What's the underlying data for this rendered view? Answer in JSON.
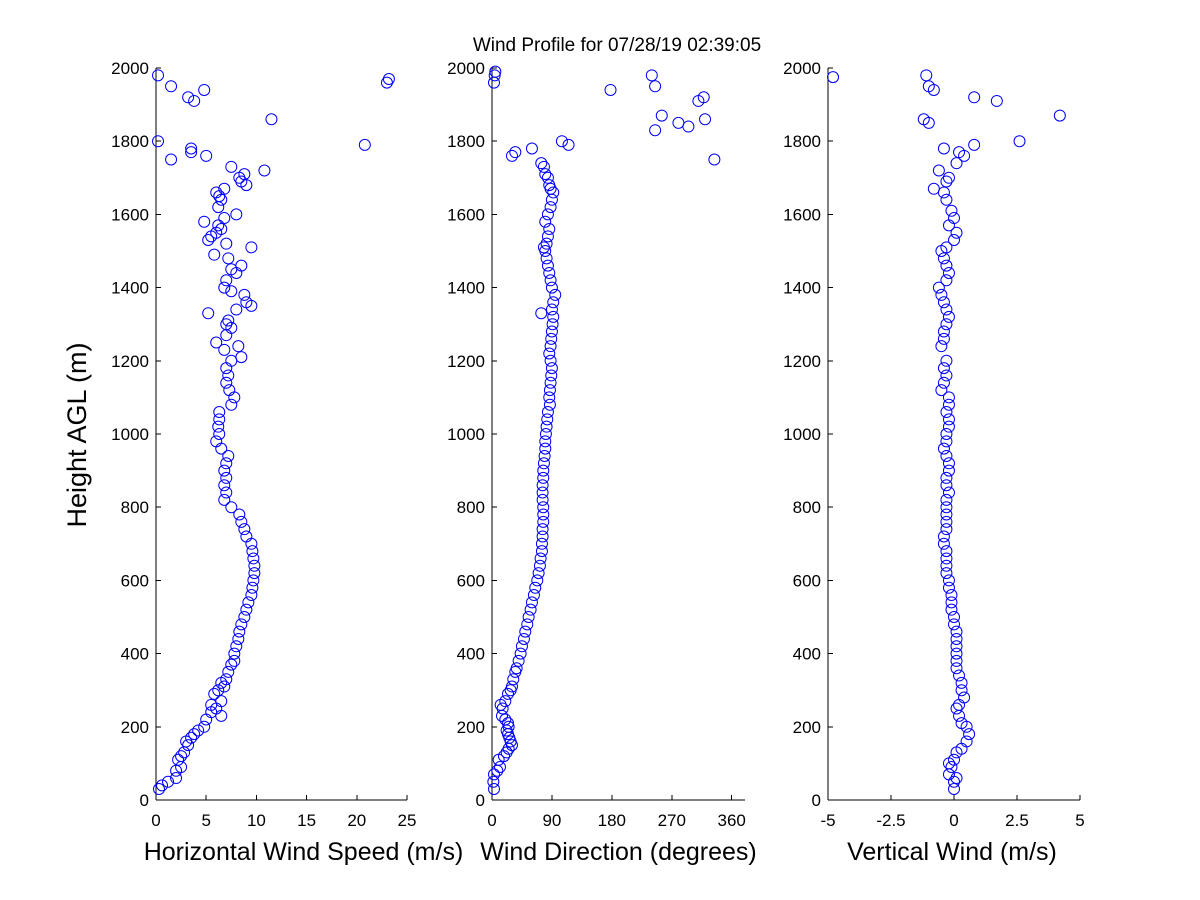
{
  "title": "Wind Profile for  07/28/19 02:39:05",
  "ylabel": "Height AGL (m)",
  "colors": {
    "marker": "#0000ff",
    "axis": "#000000",
    "background": "#ffffff"
  },
  "chart_data": [
    {
      "type": "scatter",
      "xlabel": "Horizontal Wind Speed (m/s)",
      "ylabel": "Height AGL (m)",
      "xlim": [
        0,
        25
      ],
      "ylim": [
        0,
        2000
      ],
      "xticks": [
        0,
        5,
        10,
        15,
        20,
        25
      ],
      "xtick_labels": [
        "0",
        "5",
        "10",
        "15",
        "20",
        "25"
      ],
      "yticks": [
        0,
        200,
        400,
        600,
        800,
        1000,
        1200,
        1400,
        1600,
        1800,
        2000
      ],
      "marker": "open-circle",
      "points": [
        [
          0.3,
          30
        ],
        [
          0.6,
          40
        ],
        [
          1.2,
          50
        ],
        [
          2.0,
          60
        ],
        [
          2.0,
          80
        ],
        [
          2.5,
          90
        ],
        [
          2.2,
          110
        ],
        [
          2.5,
          120
        ],
        [
          2.8,
          130
        ],
        [
          3.2,
          150
        ],
        [
          3.0,
          160
        ],
        [
          3.5,
          170
        ],
        [
          3.8,
          180
        ],
        [
          4.2,
          190
        ],
        [
          4.8,
          200
        ],
        [
          5.0,
          220
        ],
        [
          5.5,
          240
        ],
        [
          6.0,
          250
        ],
        [
          6.5,
          230
        ],
        [
          5.5,
          260
        ],
        [
          6.5,
          270
        ],
        [
          5.8,
          290
        ],
        [
          6.2,
          300
        ],
        [
          6.8,
          310
        ],
        [
          6.5,
          320
        ],
        [
          7.0,
          330
        ],
        [
          7.2,
          350
        ],
        [
          7.5,
          370
        ],
        [
          7.8,
          380
        ],
        [
          7.8,
          400
        ],
        [
          8.0,
          420
        ],
        [
          8.2,
          440
        ],
        [
          8.3,
          460
        ],
        [
          8.5,
          480
        ],
        [
          8.8,
          500
        ],
        [
          9.0,
          520
        ],
        [
          9.2,
          540
        ],
        [
          9.5,
          560
        ],
        [
          9.6,
          580
        ],
        [
          9.7,
          600
        ],
        [
          9.8,
          620
        ],
        [
          9.8,
          640
        ],
        [
          9.7,
          660
        ],
        [
          9.6,
          680
        ],
        [
          9.5,
          700
        ],
        [
          9.0,
          720
        ],
        [
          8.8,
          740
        ],
        [
          8.5,
          760
        ],
        [
          8.3,
          780
        ],
        [
          7.5,
          800
        ],
        [
          6.8,
          820
        ],
        [
          7.0,
          840
        ],
        [
          6.8,
          860
        ],
        [
          7.0,
          880
        ],
        [
          6.8,
          900
        ],
        [
          7.0,
          920
        ],
        [
          7.2,
          940
        ],
        [
          6.5,
          960
        ],
        [
          6.0,
          980
        ],
        [
          6.3,
          1000
        ],
        [
          6.2,
          1020
        ],
        [
          6.3,
          1040
        ],
        [
          6.3,
          1060
        ],
        [
          7.5,
          1080
        ],
        [
          7.8,
          1100
        ],
        [
          7.3,
          1120
        ],
        [
          7.0,
          1140
        ],
        [
          7.2,
          1160
        ],
        [
          7.0,
          1180
        ],
        [
          7.5,
          1200
        ],
        [
          8.5,
          1210
        ],
        [
          6.8,
          1230
        ],
        [
          8.2,
          1240
        ],
        [
          6.0,
          1250
        ],
        [
          7.0,
          1270
        ],
        [
          7.5,
          1290
        ],
        [
          7.0,
          1300
        ],
        [
          7.2,
          1310
        ],
        [
          5.2,
          1330
        ],
        [
          9.5,
          1350
        ],
        [
          8.0,
          1340
        ],
        [
          9.0,
          1360
        ],
        [
          8.8,
          1380
        ],
        [
          7.5,
          1390
        ],
        [
          6.8,
          1400
        ],
        [
          7.0,
          1420
        ],
        [
          8.0,
          1440
        ],
        [
          7.5,
          1450
        ],
        [
          8.5,
          1460
        ],
        [
          7.2,
          1480
        ],
        [
          5.8,
          1490
        ],
        [
          9.5,
          1510
        ],
        [
          7.0,
          1520
        ],
        [
          5.2,
          1530
        ],
        [
          5.5,
          1540
        ],
        [
          6.0,
          1550
        ],
        [
          6.5,
          1560
        ],
        [
          6.2,
          1570
        ],
        [
          4.8,
          1580
        ],
        [
          6.8,
          1590
        ],
        [
          8.0,
          1600
        ],
        [
          6.2,
          1620
        ],
        [
          6.5,
          1640
        ],
        [
          6.3,
          1650
        ],
        [
          6.0,
          1660
        ],
        [
          6.8,
          1670
        ],
        [
          9.0,
          1680
        ],
        [
          8.5,
          1690
        ],
        [
          8.8,
          1710
        ],
        [
          8.3,
          1700
        ],
        [
          10.8,
          1720
        ],
        [
          7.5,
          1730
        ],
        [
          5.0,
          1760
        ],
        [
          3.5,
          1770
        ],
        [
          3.5,
          1780
        ],
        [
          1.5,
          1750
        ],
        [
          0.2,
          1800
        ],
        [
          11.5,
          1860
        ],
        [
          20.8,
          1790
        ],
        [
          3.8,
          1910
        ],
        [
          3.2,
          1920
        ],
        [
          4.8,
          1940
        ],
        [
          1.5,
          1950
        ],
        [
          0.2,
          1980
        ],
        [
          23.0,
          1960
        ],
        [
          23.2,
          1970
        ]
      ]
    },
    {
      "type": "scatter",
      "xlabel": "Wind Direction (degrees)",
      "ylabel": "",
      "xlim": [
        0,
        380
      ],
      "ylim": [
        0,
        2000
      ],
      "xticks": [
        0,
        90,
        180,
        270,
        360
      ],
      "xtick_labels": [
        "0",
        "90",
        "180",
        "270",
        "360"
      ],
      "yticks": [
        0,
        200,
        400,
        600,
        800,
        1000,
        1200,
        1400,
        1600,
        1800,
        2000
      ],
      "marker": "open-circle",
      "points": [
        [
          3,
          30
        ],
        [
          2,
          50
        ],
        [
          3,
          70
        ],
        [
          8,
          80
        ],
        [
          12,
          90
        ],
        [
          10,
          110
        ],
        [
          18,
          120
        ],
        [
          22,
          130
        ],
        [
          25,
          140
        ],
        [
          30,
          150
        ],
        [
          28,
          160
        ],
        [
          26,
          170
        ],
        [
          24,
          180
        ],
        [
          22,
          190
        ],
        [
          25,
          200
        ],
        [
          24,
          210
        ],
        [
          20,
          220
        ],
        [
          15,
          230
        ],
        [
          16,
          250
        ],
        [
          13,
          260
        ],
        [
          20,
          270
        ],
        [
          24,
          290
        ],
        [
          28,
          300
        ],
        [
          30,
          310
        ],
        [
          32,
          330
        ],
        [
          35,
          350
        ],
        [
          37,
          360
        ],
        [
          40,
          380
        ],
        [
          43,
          400
        ],
        [
          45,
          420
        ],
        [
          48,
          440
        ],
        [
          50,
          460
        ],
        [
          53,
          480
        ],
        [
          55,
          500
        ],
        [
          58,
          520
        ],
        [
          60,
          540
        ],
        [
          63,
          560
        ],
        [
          65,
          580
        ],
        [
          68,
          600
        ],
        [
          70,
          620
        ],
        [
          72,
          640
        ],
        [
          73,
          660
        ],
        [
          75,
          680
        ],
        [
          75,
          700
        ],
        [
          76,
          720
        ],
        [
          76,
          740
        ],
        [
          77,
          760
        ],
        [
          77,
          780
        ],
        [
          77,
          800
        ],
        [
          76,
          820
        ],
        [
          76,
          840
        ],
        [
          76,
          860
        ],
        [
          77,
          880
        ],
        [
          77,
          900
        ],
        [
          78,
          920
        ],
        [
          79,
          940
        ],
        [
          80,
          960
        ],
        [
          80,
          980
        ],
        [
          81,
          1000
        ],
        [
          82,
          1020
        ],
        [
          83,
          1040
        ],
        [
          84,
          1060
        ],
        [
          87,
          1080
        ],
        [
          86,
          1100
        ],
        [
          87,
          1120
        ],
        [
          88,
          1140
        ],
        [
          89,
          1160
        ],
        [
          90,
          1180
        ],
        [
          88,
          1200
        ],
        [
          86,
          1220
        ],
        [
          88,
          1240
        ],
        [
          89,
          1260
        ],
        [
          90,
          1280
        ],
        [
          91,
          1300
        ],
        [
          92,
          1320
        ],
        [
          74,
          1330
        ],
        [
          90,
          1340
        ],
        [
          92,
          1360
        ],
        [
          95,
          1380
        ],
        [
          90,
          1400
        ],
        [
          88,
          1420
        ],
        [
          86,
          1440
        ],
        [
          84,
          1460
        ],
        [
          82,
          1480
        ],
        [
          80,
          1500
        ],
        [
          78,
          1510
        ],
        [
          82,
          1520
        ],
        [
          84,
          1540
        ],
        [
          86,
          1560
        ],
        [
          80,
          1580
        ],
        [
          84,
          1600
        ],
        [
          88,
          1620
        ],
        [
          90,
          1640
        ],
        [
          92,
          1660
        ],
        [
          88,
          1670
        ],
        [
          86,
          1680
        ],
        [
          84,
          1700
        ],
        [
          80,
          1710
        ],
        [
          78,
          1730
        ],
        [
          74,
          1740
        ],
        [
          60,
          1780
        ],
        [
          30,
          1760
        ],
        [
          35,
          1770
        ],
        [
          105,
          1800
        ],
        [
          115,
          1790
        ],
        [
          178,
          1940
        ],
        [
          240,
          1980
        ],
        [
          245,
          1950
        ],
        [
          255,
          1870
        ],
        [
          245,
          1830
        ],
        [
          280,
          1850
        ],
        [
          295,
          1840
        ],
        [
          310,
          1910
        ],
        [
          318,
          1920
        ],
        [
          320,
          1860
        ],
        [
          334,
          1750
        ],
        [
          3,
          1960
        ],
        [
          4,
          1980
        ],
        [
          5,
          1990
        ]
      ]
    },
    {
      "type": "scatter",
      "xlabel": "Vertical Wind (m/s)",
      "ylabel": "",
      "xlim": [
        -5,
        5
      ],
      "ylim": [
        0,
        2000
      ],
      "xticks": [
        -5,
        -2.5,
        0,
        2.5,
        5
      ],
      "xtick_labels": [
        "-5",
        "-2.5",
        "0",
        "2.5",
        "5"
      ],
      "yticks": [
        0,
        200,
        400,
        600,
        800,
        1000,
        1200,
        1400,
        1600,
        1800,
        2000
      ],
      "marker": "open-circle",
      "points": [
        [
          0.0,
          30
        ],
        [
          0.0,
          50
        ],
        [
          0.1,
          60
        ],
        [
          -0.2,
          70
        ],
        [
          -0.1,
          90
        ],
        [
          -0.2,
          100
        ],
        [
          0.0,
          110
        ],
        [
          0.1,
          130
        ],
        [
          0.3,
          140
        ],
        [
          0.5,
          160
        ],
        [
          0.6,
          180
        ],
        [
          0.5,
          200
        ],
        [
          0.3,
          210
        ],
        [
          0.2,
          230
        ],
        [
          0.1,
          250
        ],
        [
          0.2,
          260
        ],
        [
          0.4,
          280
        ],
        [
          0.3,
          300
        ],
        [
          0.3,
          320
        ],
        [
          0.2,
          340
        ],
        [
          0.1,
          360
        ],
        [
          0.1,
          380
        ],
        [
          0.1,
          400
        ],
        [
          0.1,
          420
        ],
        [
          0.1,
          440
        ],
        [
          0.1,
          460
        ],
        [
          0.0,
          480
        ],
        [
          0.0,
          500
        ],
        [
          -0.1,
          520
        ],
        [
          -0.1,
          540
        ],
        [
          -0.1,
          560
        ],
        [
          -0.2,
          580
        ],
        [
          -0.2,
          600
        ],
        [
          -0.3,
          620
        ],
        [
          -0.3,
          640
        ],
        [
          -0.3,
          660
        ],
        [
          -0.3,
          680
        ],
        [
          -0.4,
          700
        ],
        [
          -0.4,
          720
        ],
        [
          -0.3,
          740
        ],
        [
          -0.3,
          760
        ],
        [
          -0.3,
          780
        ],
        [
          -0.3,
          800
        ],
        [
          -0.3,
          820
        ],
        [
          -0.2,
          840
        ],
        [
          -0.3,
          860
        ],
        [
          -0.3,
          880
        ],
        [
          -0.2,
          900
        ],
        [
          -0.2,
          920
        ],
        [
          -0.3,
          940
        ],
        [
          -0.4,
          960
        ],
        [
          -0.3,
          980
        ],
        [
          -0.3,
          1000
        ],
        [
          -0.2,
          1020
        ],
        [
          -0.2,
          1040
        ],
        [
          -0.3,
          1060
        ],
        [
          -0.2,
          1080
        ],
        [
          -0.2,
          1100
        ],
        [
          -0.5,
          1120
        ],
        [
          -0.4,
          1140
        ],
        [
          -0.3,
          1160
        ],
        [
          -0.4,
          1180
        ],
        [
          -0.3,
          1200
        ],
        [
          -0.5,
          1240
        ],
        [
          -0.4,
          1260
        ],
        [
          -0.4,
          1280
        ],
        [
          -0.3,
          1300
        ],
        [
          -0.2,
          1320
        ],
        [
          -0.3,
          1340
        ],
        [
          -0.4,
          1360
        ],
        [
          -0.5,
          1380
        ],
        [
          -0.6,
          1400
        ],
        [
          -0.3,
          1420
        ],
        [
          -0.2,
          1440
        ],
        [
          -0.3,
          1460
        ],
        [
          -0.4,
          1480
        ],
        [
          -0.5,
          1500
        ],
        [
          -0.3,
          1510
        ],
        [
          0.0,
          1530
        ],
        [
          0.1,
          1550
        ],
        [
          -0.2,
          1570
        ],
        [
          0.0,
          1590
        ],
        [
          -0.1,
          1610
        ],
        [
          -0.3,
          1640
        ],
        [
          -0.4,
          1660
        ],
        [
          -0.8,
          1670
        ],
        [
          -0.3,
          1690
        ],
        [
          -0.2,
          1700
        ],
        [
          -0.6,
          1720
        ],
        [
          0.1,
          1740
        ],
        [
          0.2,
          1770
        ],
        [
          0.4,
          1760
        ],
        [
          -0.4,
          1780
        ],
        [
          0.8,
          1790
        ],
        [
          2.6,
          1800
        ],
        [
          -1.2,
          1860
        ],
        [
          -1.0,
          1850
        ],
        [
          0.8,
          1920
        ],
        [
          1.7,
          1910
        ],
        [
          4.2,
          1870
        ],
        [
          -1.0,
          1950
        ],
        [
          -0.8,
          1940
        ],
        [
          -1.1,
          1980
        ],
        [
          -4.8,
          1975
        ]
      ]
    }
  ]
}
